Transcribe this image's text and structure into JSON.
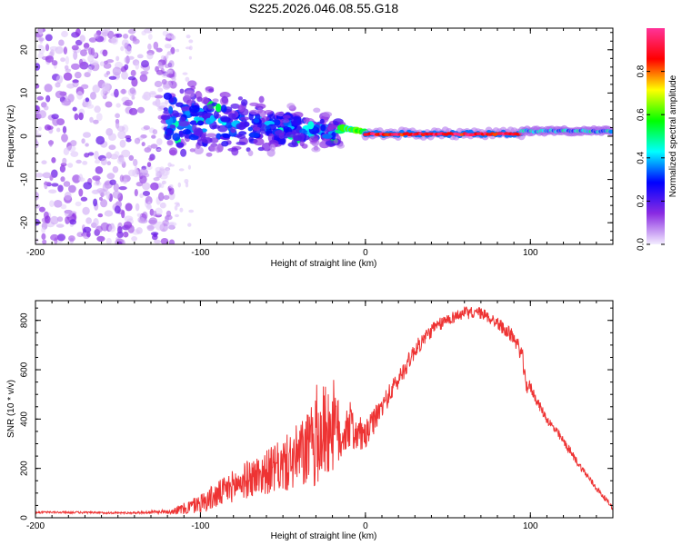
{
  "title": "S225.2026.046.08.55.G18",
  "chart_data": [
    {
      "type": "heatmap",
      "xlabel": "Height of straight line (km)",
      "ylabel": "Frequency (Hz)",
      "xlim": [
        -200,
        150
      ],
      "ylim": [
        -25,
        25
      ],
      "x_ticks": [
        -200,
        -100,
        0,
        100
      ],
      "x_tick_labels": [
        "-200",
        "-100",
        "0",
        "100"
      ],
      "y_ticks": [
        -20,
        -10,
        0,
        10,
        20
      ],
      "y_tick_labels": [
        "-20",
        "-10",
        "0",
        "10",
        "20"
      ],
      "colorbar": {
        "label": "Normalized spectral amplitude",
        "range": [
          0,
          1
        ],
        "ticks": [
          0.0,
          0.2,
          0.4,
          0.6,
          0.8
        ],
        "tick_labels": [
          "0.0",
          "0.2",
          "0.4",
          "0.6",
          "0.8"
        ],
        "stops": [
          "#f3ecff",
          "#8a2be2",
          "#0000ff",
          "#00ffff",
          "#00ff00",
          "#ffff00",
          "#ff0000",
          "#ff3399"
        ]
      },
      "regions": [
        {
          "x_range": [
            -200,
            -122
          ],
          "freq_range": [
            -25,
            25
          ],
          "amplitude": [
            0.02,
            0.18
          ],
          "description": "scattered noise"
        },
        {
          "x_range": [
            -122,
            -15
          ],
          "center_freq": [
            4,
            1
          ],
          "spread_hz": [
            12,
            4
          ],
          "amplitude": [
            0.15,
            0.45
          ]
        },
        {
          "x_range": [
            -15,
            0
          ],
          "center_freq": [
            2,
            1
          ],
          "amplitude": [
            0.4,
            0.65
          ]
        },
        {
          "x_range": [
            0,
            95
          ],
          "center_freq": 0.5,
          "amplitude": [
            0.8,
            1.0
          ]
        },
        {
          "x_range": [
            95,
            150
          ],
          "center_freq": 1.2,
          "amplitude": [
            0.3,
            0.5
          ]
        }
      ]
    },
    {
      "type": "line",
      "xlabel": "Height of straight line (km)",
      "ylabel": "SNR (10 * v/v)",
      "xlim": [
        -200,
        150
      ],
      "ylim": [
        0,
        880
      ],
      "x_ticks": [
        -200,
        -100,
        0,
        100
      ],
      "x_tick_labels": [
        "-200",
        "-100",
        "0",
        "100"
      ],
      "y_ticks": [
        0,
        200,
        400,
        600,
        800
      ],
      "y_tick_labels": [
        "0",
        "200",
        "400",
        "600",
        "800"
      ],
      "series": [
        {
          "name": "SNR",
          "color": "#ee3333",
          "x": [
            -200,
            -180,
            -160,
            -140,
            -120,
            -110,
            -100,
            -90,
            -80,
            -70,
            -60,
            -50,
            -40,
            -30,
            -25,
            -20,
            -15,
            -10,
            -5,
            0,
            10,
            20,
            30,
            40,
            50,
            60,
            70,
            80,
            90,
            95,
            97,
            100,
            105,
            110,
            120,
            130,
            140,
            150
          ],
          "values": [
            22,
            22,
            20,
            20,
            25,
            35,
            60,
            90,
            130,
            160,
            185,
            210,
            250,
            300,
            350,
            380,
            330,
            380,
            340,
            330,
            450,
            560,
            680,
            760,
            805,
            830,
            830,
            790,
            730,
            660,
            540,
            530,
            460,
            400,
            310,
            210,
            120,
            40
          ],
          "noise_amplitude": [
            4,
            4,
            4,
            4,
            8,
            25,
            40,
            55,
            65,
            80,
            90,
            110,
            140,
            180,
            200,
            200,
            120,
            100,
            80,
            60,
            45,
            40,
            35,
            30,
            25,
            25,
            25,
            25,
            30,
            35,
            40,
            25,
            20,
            20,
            18,
            15,
            12,
            10
          ]
        }
      ]
    }
  ]
}
